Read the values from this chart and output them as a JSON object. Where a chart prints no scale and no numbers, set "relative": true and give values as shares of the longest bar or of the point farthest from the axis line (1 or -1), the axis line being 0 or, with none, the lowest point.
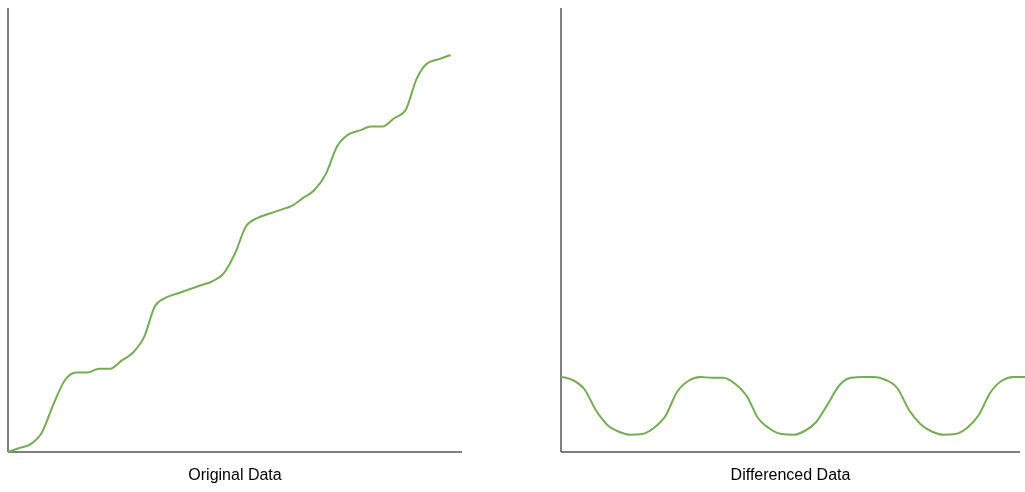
{
  "chart_data": [
    {
      "type": "line",
      "xlabel": "Original Data",
      "relative": true,
      "categories": [
        null,
        null,
        null,
        null,
        null,
        null,
        null,
        null,
        null,
        null,
        null,
        null,
        null,
        null,
        null,
        null,
        null,
        null,
        null,
        null,
        null,
        null,
        null,
        null,
        null,
        null,
        null,
        null,
        null,
        null,
        null,
        null,
        null,
        null,
        null,
        null,
        null,
        null,
        null,
        null,
        null
      ],
      "series": [
        {
          "color": "#77ab56",
          "values": [
            0,
            0.01,
            0.02,
            0.05,
            0.12,
            0.18,
            0.2,
            0.2,
            0.21,
            0.21,
            0.23,
            0.25,
            0.29,
            0.37,
            0.39,
            0.4,
            0.41,
            0.42,
            0.43,
            0.45,
            0.5,
            0.57,
            0.59,
            0.6,
            0.61,
            0.62,
            0.64,
            0.66,
            0.7,
            0.77,
            0.8,
            0.81,
            0.82,
            0.82,
            0.84,
            0.86,
            0.94,
            0.98,
            0.99,
            1,
            null
          ]
        }
      ],
      "marker": "none",
      "line_style": "solid"
    },
    {
      "type": "line",
      "xlabel": "Differenced Data",
      "relative": true,
      "categories": [
        null,
        null,
        null,
        null,
        null,
        null,
        null,
        null,
        null,
        null,
        null,
        null,
        null,
        null,
        null,
        null,
        null,
        null,
        null,
        null,
        null,
        null,
        null,
        null,
        null,
        null,
        null,
        null,
        null,
        null,
        null,
        null,
        null,
        null,
        null,
        null,
        null,
        null,
        null,
        null,
        null
      ],
      "series": [
        {
          "color": "#77ab56",
          "values": [
            1,
            0.96,
            0.84,
            0.56,
            0.36,
            0.27,
            0.23,
            0.24,
            0.32,
            0.48,
            0.8,
            0.95,
            1,
            0.99,
            0.99,
            0.91,
            0.75,
            0.45,
            0.31,
            0.24,
            0.23,
            0.28,
            0.4,
            0.64,
            0.89,
            0.99,
            1,
            1,
            0.96,
            0.85,
            0.56,
            0.37,
            0.27,
            0.23,
            0.24,
            0.32,
            0.49,
            0.79,
            0.95,
            1,
            1
          ]
        }
      ],
      "marker": "none",
      "line_style": "solid"
    }
  ]
}
